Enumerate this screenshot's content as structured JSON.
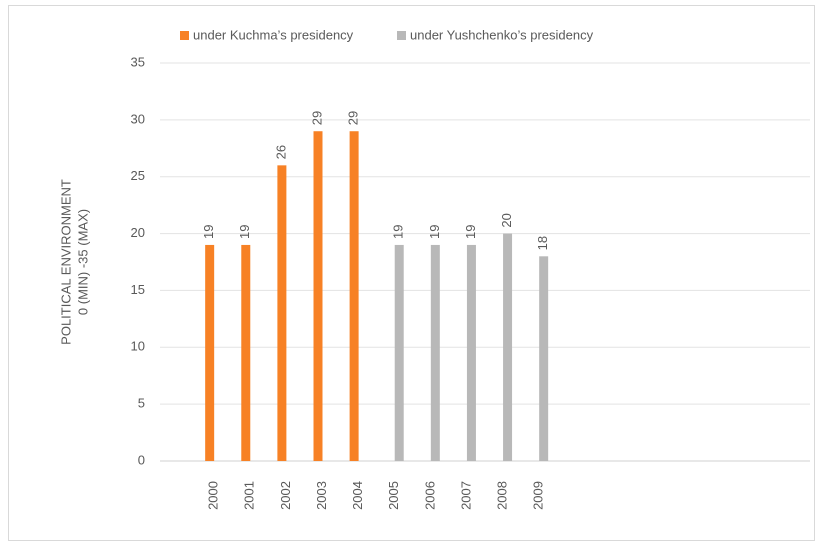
{
  "chart_data": {
    "type": "bar",
    "ylabel": [
      "POLITICAL ENVIRONMENT",
      "0 (MIN) -35 (MAX)"
    ],
    "categories": [
      null,
      "2000",
      "2001",
      "2002",
      "2003",
      "2004",
      "2005",
      "2006",
      "2007",
      "2008",
      "2009",
      null,
      null,
      null,
      null,
      null,
      null,
      null
    ],
    "series": [
      {
        "name": "under Kuchma’s presidency",
        "color": "#f78125",
        "values": [
          null,
          19,
          19,
          26,
          29,
          29,
          null,
          null,
          null,
          null,
          null,
          null,
          null,
          null,
          null,
          null,
          null,
          null
        ]
      },
      {
        "name": "under Yushchenko’s presidency",
        "color": "#b8b8b8",
        "values": [
          null,
          null,
          null,
          null,
          null,
          null,
          19,
          19,
          19,
          20,
          18,
          null,
          null,
          null,
          null,
          null,
          null,
          null
        ]
      }
    ],
    "ylim": [
      0,
      35
    ],
    "yticks": [
      0,
      5,
      10,
      15,
      20,
      25,
      30,
      35
    ],
    "grid": true,
    "legend": "top"
  }
}
